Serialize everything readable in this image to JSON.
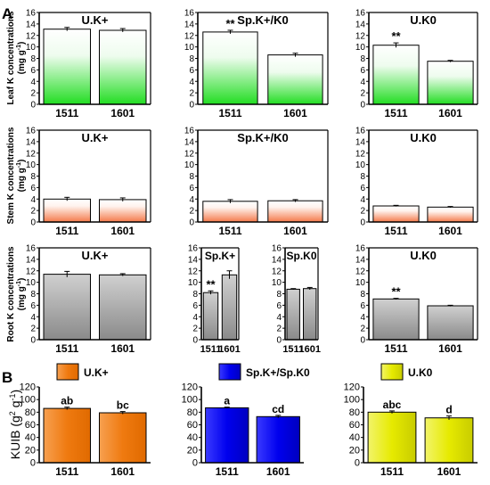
{
  "panel_labels": [
    "A",
    "B"
  ],
  "row_ylabels": [
    [
      "Leaf K concentrations",
      "(mg g",
      "-1",
      ")"
    ],
    [
      "Stem K concentrations",
      "(mg g",
      "-1",
      ")"
    ],
    [
      "Root K concentrations",
      "(mg g",
      "-1",
      ")"
    ]
  ],
  "b_ylabel": [
    "KUIB (g",
    "2",
    " g",
    "-1",
    ")"
  ],
  "colors": {
    "green": "#22dd22",
    "orange_light": "#f4794a",
    "gray": "#909090",
    "orange": "#f07a10",
    "blue": "#0000ee",
    "yellow": "#e6ea00"
  },
  "chart_data": [
    {
      "type": "bar",
      "panel": "A",
      "row": "leaf",
      "title": "U.K+",
      "categories": [
        "1511",
        "1601"
      ],
      "values": [
        13.1,
        12.9
      ],
      "errors": [
        0.3,
        0.3
      ],
      "labels": [
        "",
        ""
      ],
      "ylim": [
        0,
        16
      ],
      "yticks": [
        0,
        2,
        4,
        6,
        8,
        10,
        12,
        14,
        16
      ],
      "fill": "green-gradient"
    },
    {
      "type": "bar",
      "panel": "A",
      "row": "leaf",
      "title": "Sp.K+/K0",
      "categories": [
        "1511",
        "1601"
      ],
      "values": [
        12.6,
        8.6
      ],
      "errors": [
        0.3,
        0.3
      ],
      "labels": [
        "**",
        ""
      ],
      "ylim": [
        0,
        16
      ],
      "yticks": [
        0,
        2,
        4,
        6,
        8,
        10,
        12,
        14,
        16
      ],
      "fill": "green-gradient"
    },
    {
      "type": "bar",
      "panel": "A",
      "row": "leaf",
      "title": "U.K0",
      "categories": [
        "1511",
        "1601"
      ],
      "values": [
        10.3,
        7.5
      ],
      "errors": [
        0.4,
        0.15
      ],
      "labels": [
        "**",
        ""
      ],
      "ylim": [
        0,
        16
      ],
      "yticks": [
        0,
        2,
        4,
        6,
        8,
        10,
        12,
        14,
        16
      ],
      "fill": "green-gradient"
    },
    {
      "type": "bar",
      "panel": "A",
      "row": "stem",
      "title": "U.K+",
      "categories": [
        "1511",
        "1601"
      ],
      "values": [
        4.0,
        3.9
      ],
      "errors": [
        0.3,
        0.3
      ],
      "labels": [
        "",
        ""
      ],
      "ylim": [
        0,
        16
      ],
      "yticks": [
        0,
        2,
        4,
        6,
        8,
        10,
        12,
        14,
        16
      ],
      "fill": "orange-gradient"
    },
    {
      "type": "bar",
      "panel": "A",
      "row": "stem",
      "title": "Sp.K+/K0",
      "categories": [
        "1511",
        "1601"
      ],
      "values": [
        3.6,
        3.7
      ],
      "errors": [
        0.3,
        0.2
      ],
      "labels": [
        "",
        ""
      ],
      "ylim": [
        0,
        16
      ],
      "yticks": [
        0,
        2,
        4,
        6,
        8,
        10,
        12,
        14,
        16
      ],
      "fill": "orange-gradient"
    },
    {
      "type": "bar",
      "panel": "A",
      "row": "stem",
      "title": "U.K0",
      "categories": [
        "1511",
        "1601"
      ],
      "values": [
        2.8,
        2.6
      ],
      "errors": [
        0.1,
        0.1
      ],
      "labels": [
        "",
        ""
      ],
      "ylim": [
        0,
        16
      ],
      "yticks": [
        0,
        2,
        4,
        6,
        8,
        10,
        12,
        14,
        16
      ],
      "fill": "orange-gradient"
    },
    {
      "type": "bar",
      "panel": "A",
      "row": "root",
      "title": "U.K+",
      "categories": [
        "1511",
        "1601"
      ],
      "values": [
        11.4,
        11.3
      ],
      "errors": [
        0.5,
        0.2
      ],
      "labels": [
        "",
        ""
      ],
      "ylim": [
        0,
        16
      ],
      "yticks": [
        0,
        2,
        4,
        6,
        8,
        10,
        12,
        14,
        16
      ],
      "fill": "gray-gradient"
    },
    {
      "type": "bar",
      "panel": "A",
      "row": "root",
      "title": "Sp.K+",
      "categories": [
        "1511",
        "1601"
      ],
      "values": [
        8.2,
        11.3
      ],
      "errors": [
        0.3,
        0.7
      ],
      "labels": [
        "**",
        ""
      ],
      "ylim": [
        0,
        16
      ],
      "yticks": [
        0,
        2,
        4,
        6,
        8,
        10,
        12,
        14,
        16
      ],
      "fill": "gray-gradient"
    },
    {
      "type": "bar",
      "panel": "A",
      "row": "root",
      "title": "Sp.K0",
      "categories": [
        "1511",
        "1601"
      ],
      "values": [
        8.8,
        8.9
      ],
      "errors": [
        0.1,
        0.2
      ],
      "labels": [
        "",
        ""
      ],
      "ylim": [
        0,
        16
      ],
      "yticks": [
        0,
        2,
        4,
        6,
        8,
        10,
        12,
        14,
        16
      ],
      "fill": "gray-gradient"
    },
    {
      "type": "bar",
      "panel": "A",
      "row": "root",
      "title": "U.K0",
      "categories": [
        "1511",
        "1601"
      ],
      "values": [
        7.1,
        5.9
      ],
      "errors": [
        0.1,
        0.1
      ],
      "labels": [
        "**",
        ""
      ],
      "ylim": [
        0,
        16
      ],
      "yticks": [
        0,
        2,
        4,
        6,
        8,
        10,
        12,
        14,
        16
      ],
      "fill": "gray-gradient"
    },
    {
      "type": "bar",
      "panel": "B",
      "legend": "U.K+",
      "categories": [
        "1511",
        "1601"
      ],
      "values": [
        86,
        79
      ],
      "errors": [
        2,
        2
      ],
      "labels": [
        "ab",
        "bc"
      ],
      "ylim": [
        0,
        120
      ],
      "yticks": [
        0,
        20,
        40,
        60,
        80,
        100,
        120
      ],
      "fill": "orange"
    },
    {
      "type": "bar",
      "panel": "B",
      "legend": "Sp.K+/Sp.K0",
      "categories": [
        "1511",
        "1601"
      ],
      "values": [
        87,
        73
      ],
      "errors": [
        1,
        2
      ],
      "labels": [
        "a",
        "cd"
      ],
      "ylim": [
        0,
        120
      ],
      "yticks": [
        0,
        20,
        40,
        60,
        80,
        100,
        120
      ],
      "fill": "blue"
    },
    {
      "type": "bar",
      "panel": "B",
      "legend": "U.K0",
      "categories": [
        "1511",
        "1601"
      ],
      "values": [
        80,
        71
      ],
      "errors": [
        2,
        3
      ],
      "labels": [
        "abc",
        "d"
      ],
      "ylim": [
        0,
        120
      ],
      "yticks": [
        0,
        20,
        40,
        60,
        80,
        100,
        120
      ],
      "fill": "yellow"
    }
  ]
}
